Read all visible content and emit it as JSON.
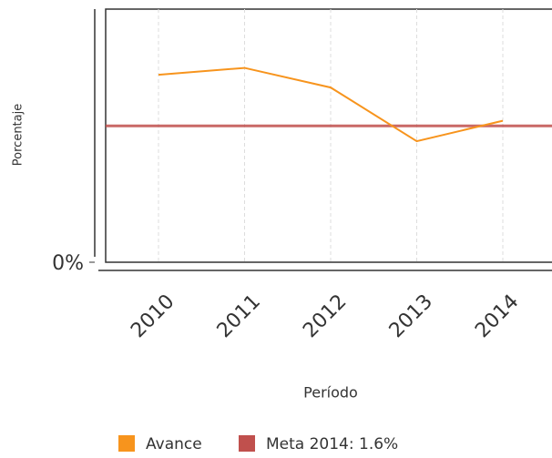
{
  "chart_data": {
    "type": "line",
    "x_label": "Período",
    "y_label": "Porcentaje",
    "categories": [
      "2010",
      "2011",
      "2012",
      "2013",
      "2014"
    ],
    "series": [
      {
        "name": "Avance",
        "color": "#f7941d",
        "values": [
          2.2,
          2.28,
          2.05,
          1.42,
          1.66
        ]
      }
    ],
    "target": {
      "name": "Meta 2014: 1.6%",
      "value": 1.6,
      "color": "#c0504d"
    },
    "ylim": [
      0,
      2.97
    ],
    "yticks": [
      {
        "value": 0,
        "label": "0%"
      }
    ],
    "grid": true
  }
}
